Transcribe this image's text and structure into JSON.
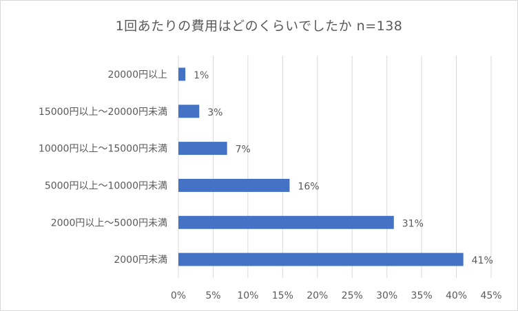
{
  "chart_data": {
    "type": "bar",
    "orientation": "horizontal",
    "title": "1回あたりの費用はどのくらいでしたか n=138",
    "categories": [
      "20000円以上",
      "15000円以上～20000円未満",
      "10000円以上～15000円未満",
      "5000円以上～10000円未満",
      "2000円以上～5000円未満",
      "2000円未満"
    ],
    "values": [
      1,
      3,
      7,
      16,
      31,
      41
    ],
    "value_labels": [
      "1%",
      "3%",
      "7%",
      "16%",
      "31%",
      "41%"
    ],
    "xlim": [
      0,
      45
    ],
    "xticks": [
      "0%",
      "5%",
      "10%",
      "15%",
      "20%",
      "25%",
      "30%",
      "35%",
      "40%",
      "45%"
    ],
    "grid": "vertical",
    "legend": "none",
    "bar_color": "#4472C4",
    "grid_color": "#d9d9d9",
    "text_color": "#595959"
  }
}
